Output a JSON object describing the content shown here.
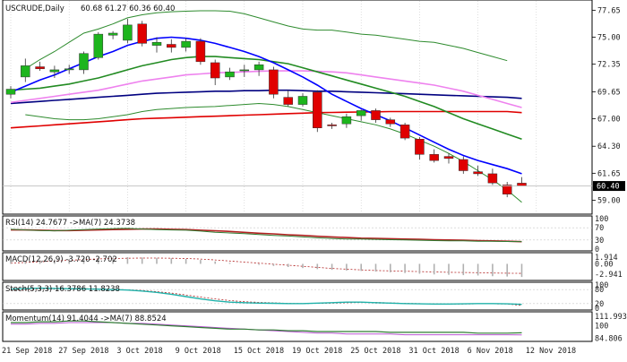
{
  "header": {
    "symbol_label": "USCRUDE,Daily",
    "ohlc_label": "60.68 61.27 60.36 60.40"
  },
  "colors": {
    "bull": "#1db51d",
    "bear": "#e00000",
    "sma_red": "#e00000",
    "ma_navy": "#000080",
    "ma_violet": "#ee82ee",
    "ma_green": "#228b22",
    "ma_blue": "#0000ff",
    "bb_green": "#2e8b2e",
    "osc_teal": "#20b2aa",
    "osc_red": "#b22222",
    "osc_green": "#2e7d32",
    "osc_violet": "#ba55d3",
    "macd_hist": "#b0b0b0",
    "grid": "#c8c8c8"
  },
  "panels": {
    "rsi": {
      "title": "RSI(14) 24.7677 ->MA(7) 24.3738",
      "ticks": [
        "100",
        "70",
        "30",
        "0"
      ]
    },
    "macd": {
      "title": "MACD(12,26,9) -3.720 -2.702",
      "ticks": [
        "1.914",
        "0.00",
        "-2.941"
      ]
    },
    "stoch": {
      "title": "Stoch(5,3,3) 16.3786 11.8238",
      "ticks": [
        "100",
        "80",
        "20",
        "0"
      ]
    },
    "momentum": {
      "title": "Momentum(14) 91.4044 ->MA(7) 88.8524",
      "ticks": [
        "111.993",
        "100",
        "84.806"
      ]
    }
  },
  "chart_data": {
    "type": "candlestick",
    "title": "USCRUDE,Daily",
    "price_axis_ticks": [
      77.65,
      75.0,
      72.35,
      69.65,
      67.0,
      64.3,
      61.65,
      59.0
    ],
    "last_price_label": "60.40",
    "ylim": [
      57.9,
      78.3
    ],
    "x_tick_labels": [
      "21 Sep 2018",
      "27 Sep 2018",
      "3 Oct 2018",
      "9 Oct 2018",
      "15 Oct 2018",
      "19 Oct 2018",
      "25 Oct 2018",
      "31 Oct 2018",
      "6 Nov 2018",
      "12 Nov 2018"
    ],
    "candles": [
      {
        "o": 69.4,
        "h": 70.2,
        "l": 69.0,
        "c": 69.9
      },
      {
        "o": 71.1,
        "h": 72.9,
        "l": 70.6,
        "c": 72.2
      },
      {
        "o": 72.1,
        "h": 72.6,
        "l": 71.7,
        "c": 71.9
      },
      {
        "o": 71.6,
        "h": 72.2,
        "l": 71.0,
        "c": 71.8
      },
      {
        "o": 71.8,
        "h": 72.3,
        "l": 71.4,
        "c": 71.9
      },
      {
        "o": 71.8,
        "h": 73.6,
        "l": 71.4,
        "c": 73.4
      },
      {
        "o": 73.0,
        "h": 75.5,
        "l": 72.8,
        "c": 75.3
      },
      {
        "o": 75.2,
        "h": 75.6,
        "l": 74.8,
        "c": 75.4
      },
      {
        "o": 74.7,
        "h": 76.8,
        "l": 74.4,
        "c": 76.2
      },
      {
        "o": 76.3,
        "h": 76.6,
        "l": 74.1,
        "c": 74.4
      },
      {
        "o": 74.2,
        "h": 75.0,
        "l": 73.5,
        "c": 74.5
      },
      {
        "o": 74.3,
        "h": 74.8,
        "l": 73.5,
        "c": 74.0
      },
      {
        "o": 74.0,
        "h": 74.9,
        "l": 73.6,
        "c": 74.6
      },
      {
        "o": 74.6,
        "h": 74.9,
        "l": 72.3,
        "c": 72.6
      },
      {
        "o": 72.5,
        "h": 72.8,
        "l": 70.3,
        "c": 71.0
      },
      {
        "o": 71.1,
        "h": 72.0,
        "l": 70.8,
        "c": 71.6
      },
      {
        "o": 71.7,
        "h": 72.3,
        "l": 71.1,
        "c": 71.8
      },
      {
        "o": 71.8,
        "h": 72.6,
        "l": 71.2,
        "c": 72.3
      },
      {
        "o": 71.8,
        "h": 72.1,
        "l": 69.0,
        "c": 69.4
      },
      {
        "o": 69.1,
        "h": 69.8,
        "l": 68.2,
        "c": 68.4
      },
      {
        "o": 68.4,
        "h": 69.5,
        "l": 68.2,
        "c": 69.2
      },
      {
        "o": 69.6,
        "h": 69.8,
        "l": 65.7,
        "c": 66.1
      },
      {
        "o": 66.4,
        "h": 66.6,
        "l": 66.0,
        "c": 66.3
      },
      {
        "o": 66.5,
        "h": 67.5,
        "l": 66.1,
        "c": 67.2
      },
      {
        "o": 67.3,
        "h": 67.9,
        "l": 66.8,
        "c": 67.8
      },
      {
        "o": 67.8,
        "h": 68.0,
        "l": 66.6,
        "c": 66.9
      },
      {
        "o": 66.9,
        "h": 67.1,
        "l": 66.2,
        "c": 66.5
      },
      {
        "o": 66.4,
        "h": 66.6,
        "l": 64.9,
        "c": 65.1
      },
      {
        "o": 65.0,
        "h": 65.2,
        "l": 63.0,
        "c": 63.5
      },
      {
        "o": 63.5,
        "h": 64.0,
        "l": 62.7,
        "c": 62.9
      },
      {
        "o": 63.3,
        "h": 63.6,
        "l": 62.6,
        "c": 63.1
      },
      {
        "o": 63.0,
        "h": 63.3,
        "l": 61.6,
        "c": 61.9
      },
      {
        "o": 61.8,
        "h": 62.4,
        "l": 61.4,
        "c": 61.6
      },
      {
        "o": 61.6,
        "h": 62.1,
        "l": 60.5,
        "c": 60.7
      },
      {
        "o": 60.5,
        "h": 60.8,
        "l": 59.3,
        "c": 59.6
      },
      {
        "o": 60.68,
        "h": 61.27,
        "l": 60.36,
        "c": 60.4
      }
    ],
    "overlays": [
      {
        "name": "",
        "color": "#2e8b2e",
        "values": [
          null,
          71.9,
          72.8,
          73.6,
          74.5,
          75.4,
          75.8,
          76.3,
          76.9,
          77.2,
          77.4,
          77.5,
          77.55,
          77.6,
          77.6,
          77.55,
          77.3,
          76.9,
          76.5,
          76.1,
          75.8,
          75.7,
          75.7,
          75.5,
          75.3,
          75.2,
          75.0,
          74.8,
          74.6,
          74.5,
          74.2,
          73.9,
          73.5,
          73.1,
          72.7,
          null
        ]
      },
      {
        "name": "",
        "color": "#2e8b2e",
        "values": [
          null,
          67.4,
          67.2,
          67.0,
          66.9,
          66.9,
          67.0,
          67.2,
          67.4,
          67.7,
          67.9,
          68.0,
          68.1,
          68.15,
          68.2,
          68.3,
          68.4,
          68.5,
          68.4,
          68.2,
          67.9,
          67.6,
          67.3,
          67.0,
          66.7,
          66.4,
          66.0,
          65.5,
          64.9,
          64.3,
          63.6,
          62.8,
          61.9,
          61.0,
          60.0,
          58.8
        ]
      },
      {
        "name": "",
        "color": "#e00000",
        "values": [
          66.1,
          66.2,
          66.3,
          66.4,
          66.5,
          66.6,
          66.7,
          66.8,
          66.9,
          67.0,
          67.05,
          67.1,
          67.15,
          67.2,
          67.25,
          67.3,
          67.35,
          67.4,
          67.45,
          67.5,
          67.55,
          67.6,
          67.62,
          67.64,
          67.66,
          67.68,
          67.7,
          67.7,
          67.7,
          67.7,
          67.7,
          67.7,
          67.7,
          67.7,
          67.7,
          67.6
        ]
      },
      {
        "name": "",
        "color": "#000080",
        "values": [
          68.5,
          68.6,
          68.7,
          68.8,
          68.9,
          69.0,
          69.1,
          69.2,
          69.3,
          69.4,
          69.5,
          69.55,
          69.6,
          69.65,
          69.7,
          69.7,
          69.75,
          69.75,
          69.8,
          69.8,
          69.75,
          69.7,
          69.7,
          69.65,
          69.6,
          69.55,
          69.5,
          69.45,
          69.4,
          69.35,
          69.3,
          69.25,
          69.2,
          69.15,
          69.1,
          69.0
        ]
      },
      {
        "name": "",
        "color": "#ee82ee",
        "values": [
          68.6,
          68.8,
          69.0,
          69.2,
          69.4,
          69.6,
          69.8,
          70.1,
          70.4,
          70.7,
          70.9,
          71.1,
          71.3,
          71.4,
          71.5,
          71.55,
          71.6,
          71.65,
          71.7,
          71.7,
          71.7,
          71.65,
          71.6,
          71.5,
          71.3,
          71.1,
          70.9,
          70.7,
          70.5,
          70.3,
          70.0,
          69.7,
          69.3,
          68.9,
          68.5,
          68.1
        ]
      },
      {
        "name": "",
        "color": "#228b22",
        "values": [
          69.8,
          69.9,
          70.0,
          70.2,
          70.4,
          70.7,
          71.0,
          71.4,
          71.8,
          72.2,
          72.5,
          72.8,
          73.0,
          73.1,
          73.1,
          73.0,
          72.9,
          72.8,
          72.6,
          72.4,
          72.0,
          71.6,
          71.2,
          70.8,
          70.4,
          70.0,
          69.6,
          69.2,
          68.7,
          68.2,
          67.6,
          67.0,
          66.5,
          66.0,
          65.5,
          65.0
        ]
      },
      {
        "name": "",
        "color": "#0000ff",
        "values": [
          69.6,
          70.2,
          70.8,
          71.3,
          71.9,
          72.5,
          73.1,
          73.6,
          74.2,
          74.6,
          74.9,
          75.0,
          74.9,
          74.7,
          74.4,
          74.0,
          73.6,
          73.1,
          72.5,
          71.8,
          71.1,
          70.3,
          69.4,
          68.7,
          68.0,
          67.4,
          66.8,
          66.1,
          65.4,
          64.7,
          64.0,
          63.4,
          62.9,
          62.5,
          62.1,
          61.6
        ]
      }
    ],
    "rsi": {
      "rsi": [
        65,
        63,
        61,
        60,
        62,
        64,
        66,
        67,
        68,
        66,
        64,
        63,
        62,
        59,
        55,
        53,
        51,
        48,
        45,
        43,
        40,
        37,
        35,
        33,
        33,
        32,
        31,
        30,
        29,
        28,
        27,
        27,
        26,
        26,
        25,
        24.77
      ],
      "ma": [
        63,
        63,
        62,
        61,
        61,
        62,
        63,
        64,
        65,
        66,
        66,
        65,
        64,
        62,
        60,
        58,
        55,
        52,
        50,
        47,
        45,
        42,
        40,
        38,
        36,
        35,
        34,
        33,
        32,
        31,
        30,
        29,
        28,
        27,
        26,
        24.37
      ],
      "ylim": [
        0,
        100
      ],
      "levels": [
        30,
        70
      ]
    },
    "macd": {
      "hist": [
        0.6,
        0.8,
        1.0,
        1.2,
        1.4,
        1.6,
        1.7,
        1.8,
        1.9,
        1.8,
        1.7,
        1.6,
        1.4,
        1.1,
        0.7,
        0.3,
        0.0,
        -0.3,
        -0.6,
        -0.9,
        -1.2,
        -1.5,
        -1.7,
        -1.9,
        -2.0,
        -2.2,
        -2.4,
        -2.6,
        -2.8,
        -3.0,
        -3.1,
        -3.2,
        -3.3,
        -3.5,
        -3.6,
        -3.72
      ],
      "signal": [
        0.2,
        0.4,
        0.6,
        0.8,
        1.0,
        1.2,
        1.4,
        1.5,
        1.6,
        1.65,
        1.65,
        1.6,
        1.5,
        1.35,
        1.1,
        0.8,
        0.5,
        0.2,
        -0.1,
        -0.4,
        -0.7,
        -1.0,
        -1.3,
        -1.5,
        -1.7,
        -1.9,
        -2.0,
        -2.1,
        -2.2,
        -2.3,
        -2.4,
        -2.45,
        -2.5,
        -2.6,
        -2.65,
        -2.7
      ],
      "ylim": [
        -4.2,
        2.4
      ]
    },
    "stoch": {
      "k": [
        82,
        84,
        86,
        85,
        84,
        83,
        82,
        80,
        78,
        74,
        68,
        60,
        50,
        40,
        32,
        26,
        24,
        22,
        21,
        20,
        20,
        22,
        24,
        26,
        26,
        24,
        22,
        20,
        19,
        18,
        18,
        19,
        20,
        20,
        19,
        16.38
      ],
      "d": [
        78,
        80,
        82,
        83,
        84,
        84,
        83,
        81,
        79,
        76,
        71,
        65,
        57,
        48,
        40,
        33,
        28,
        25,
        23,
        21,
        20,
        21,
        22,
        24,
        25,
        25,
        23,
        21,
        20,
        19,
        18,
        18,
        19,
        19,
        18,
        11.82
      ],
      "ylim": [
        0,
        100
      ],
      "levels": [
        20,
        80
      ]
    },
    "momentum": {
      "mom": [
        104,
        104,
        105,
        105,
        106,
        106,
        105,
        104,
        103,
        102,
        101,
        100,
        99,
        98,
        97,
        96,
        96,
        95,
        95,
        94,
        94,
        93,
        93,
        93,
        93,
        93,
        92,
        92,
        92,
        92,
        92,
        92,
        91,
        91,
        91,
        91.4
      ],
      "ma": [
        102,
        102,
        103,
        103,
        104,
        104,
        104,
        104,
        103,
        103,
        102,
        101,
        100,
        99,
        98,
        97,
        96,
        95,
        94,
        93,
        92,
        91,
        91,
        90,
        90,
        90,
        90,
        89,
        89,
        89,
        89,
        89,
        89,
        89,
        89,
        88.85
      ],
      "ylim": [
        83,
        114
      ]
    }
  }
}
